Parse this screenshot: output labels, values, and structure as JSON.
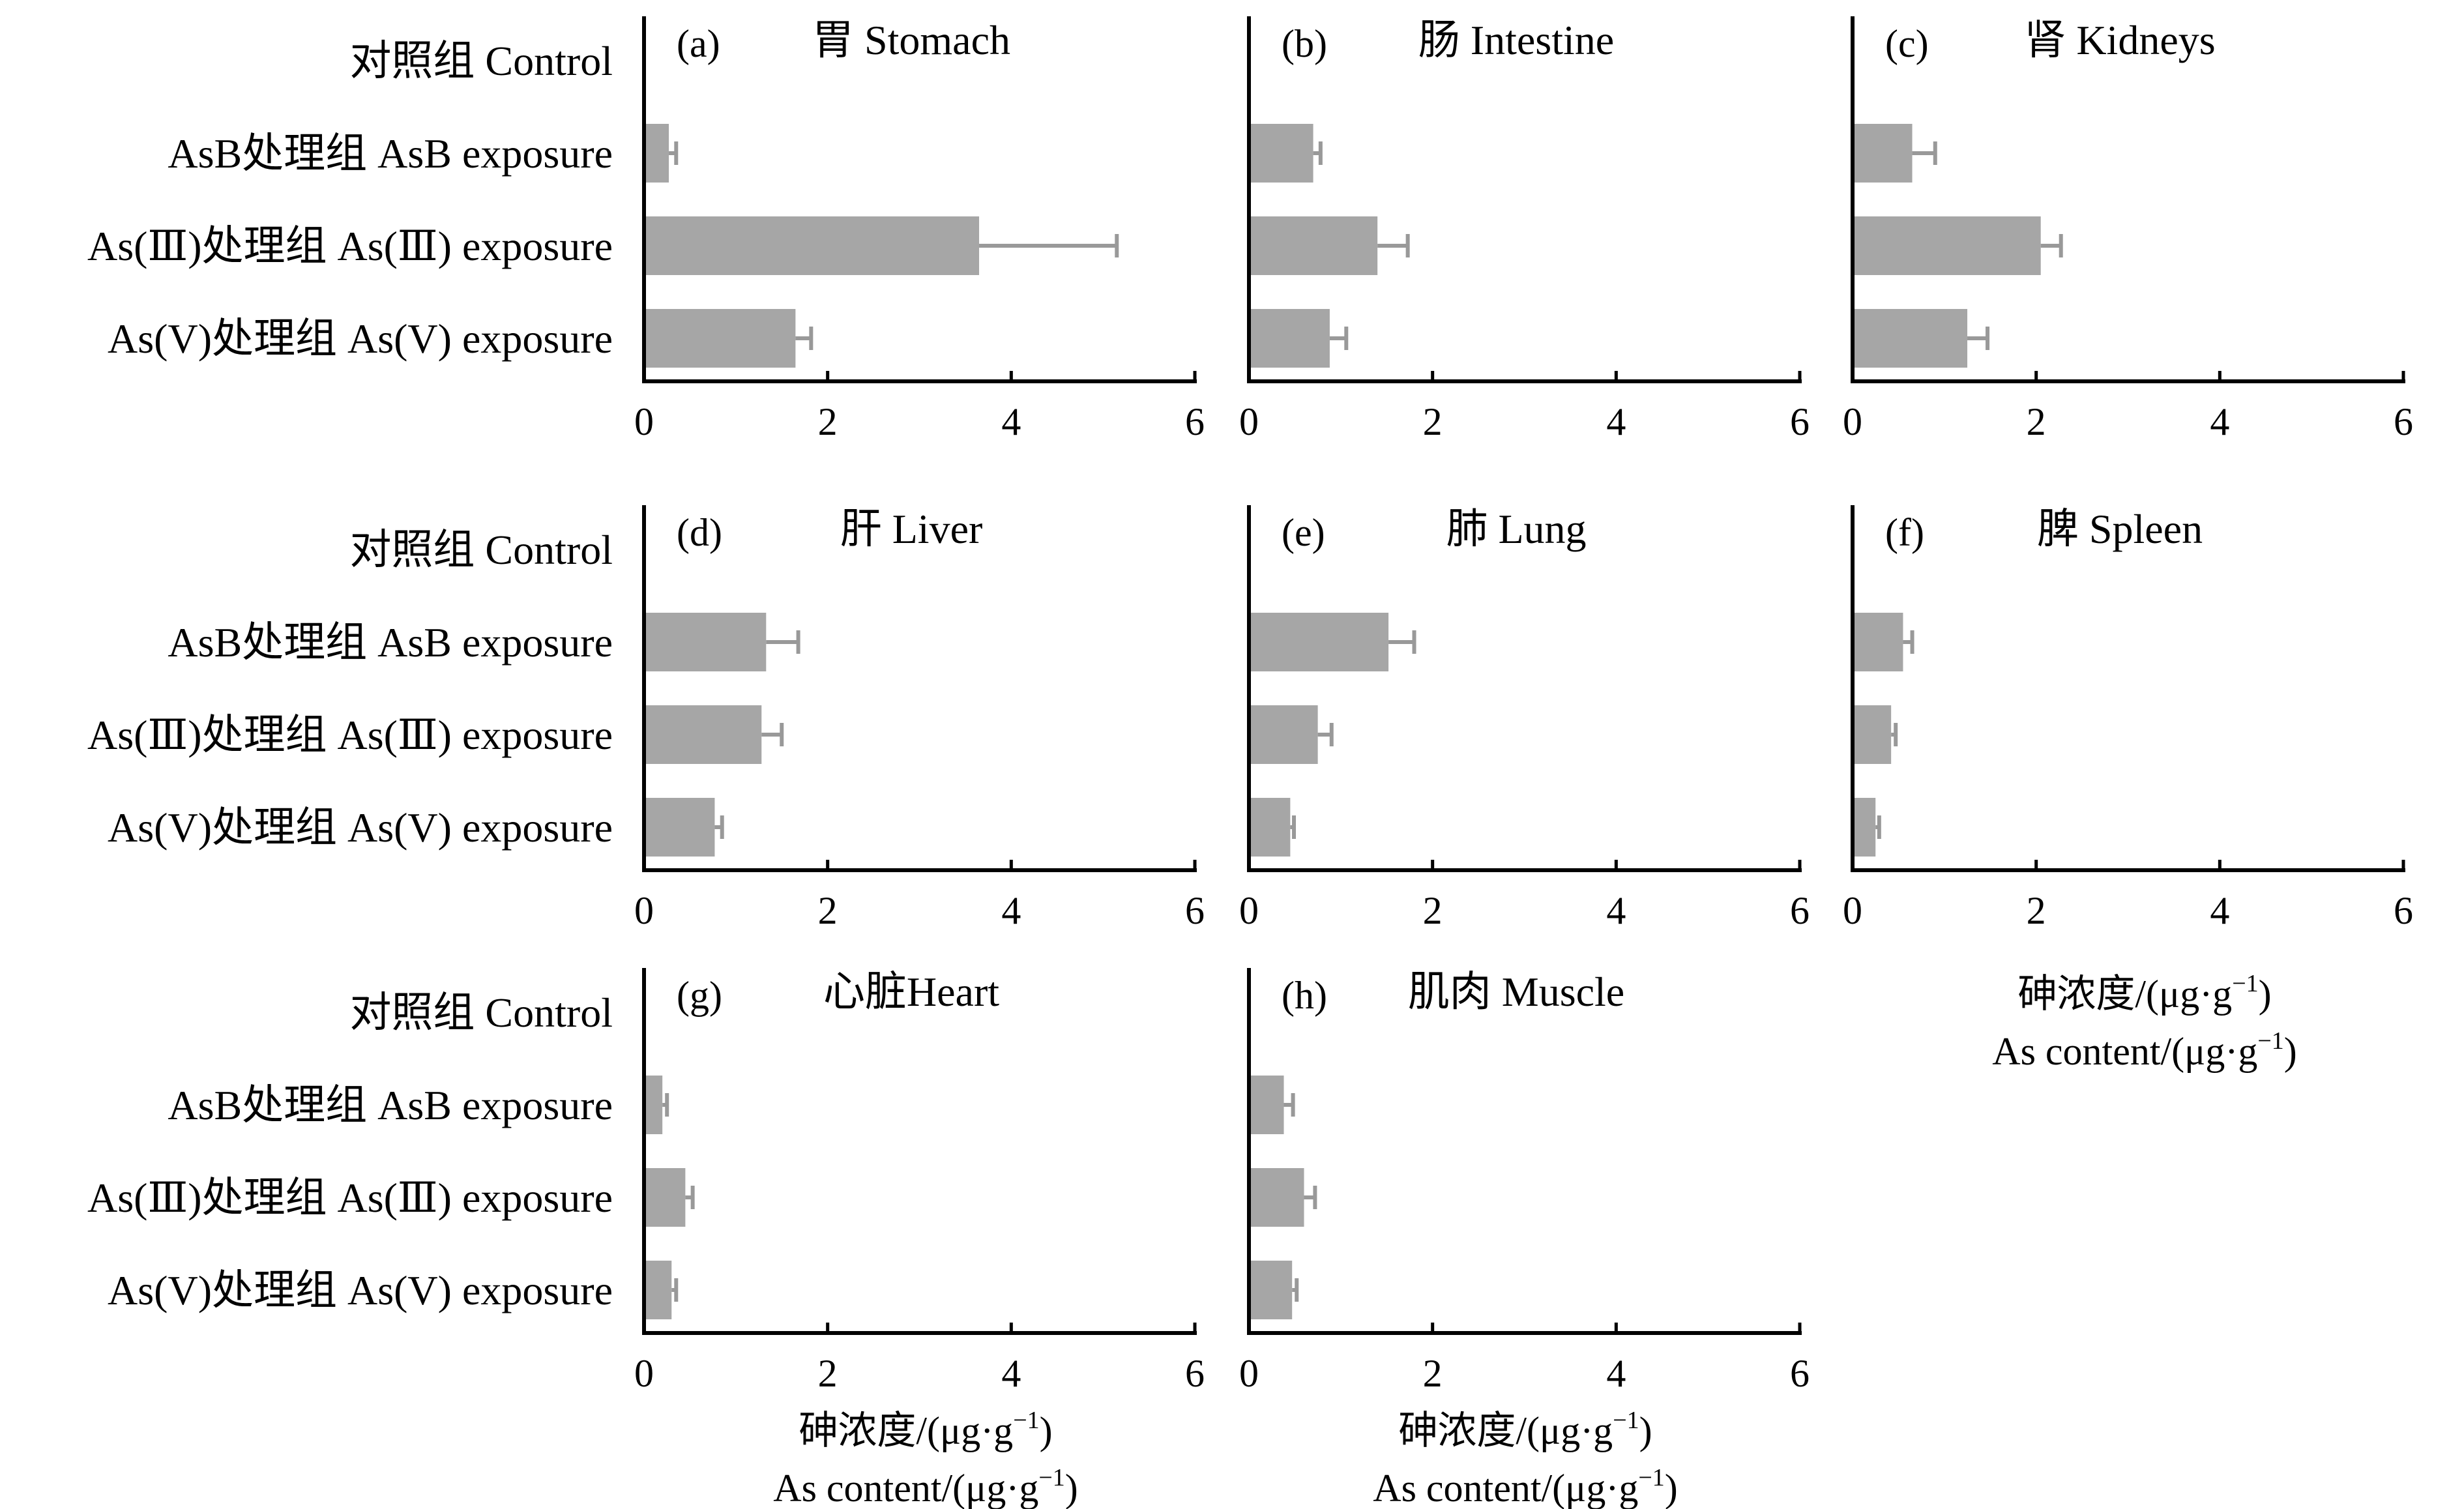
{
  "figure": {
    "category_labels": [
      "对照组 Control",
      "AsB处理组 AsB exposure",
      "As(Ⅲ)处理组 As(Ⅲ) exposure",
      "As(V)处理组 As(V) exposure"
    ],
    "xlabel_cn": "砷浓度/(μg·g",
    "xlabel_en": "As content/(μg·g",
    "xlabel_sup": "−1",
    "xlabel_close": ")",
    "bar_color": "#a6a6a6",
    "axis_color": "#000000"
  },
  "chart_data": [
    {
      "type": "bar",
      "panel": "(a)",
      "title": "胃 Stomach",
      "categories": [
        "对照组 Control",
        "AsB处理组 AsB exposure",
        "As(Ⅲ)处理组 As(Ⅲ) exposure",
        "As(V)处理组 As(V) exposure"
      ],
      "values": [
        0.02,
        0.27,
        3.65,
        1.65
      ],
      "errors": [
        0.0,
        0.08,
        1.5,
        0.17
      ],
      "xlim": [
        0,
        6
      ],
      "xticks": [
        0,
        2,
        4,
        6
      ]
    },
    {
      "type": "bar",
      "panel": "(b)",
      "title": "肠 Intestine",
      "categories": [
        "对照组 Control",
        "AsB处理组 AsB exposure",
        "As(Ⅲ)处理组 As(Ⅲ) exposure",
        "As(V)处理组 As(V) exposure"
      ],
      "values": [
        0.02,
        0.7,
        1.4,
        0.88
      ],
      "errors": [
        0.0,
        0.08,
        0.33,
        0.18
      ],
      "xlim": [
        0,
        6
      ],
      "xticks": [
        0,
        2,
        4,
        6
      ]
    },
    {
      "type": "bar",
      "panel": "(c)",
      "title": "肾 Kidneys",
      "categories": [
        "对照组 Control",
        "AsB处理组 AsB exposure",
        "As(Ⅲ)处理组 As(Ⅲ) exposure",
        "As(V)处理组 As(V) exposure"
      ],
      "values": [
        0.02,
        0.65,
        2.05,
        1.25
      ],
      "errors": [
        0.0,
        0.25,
        0.22,
        0.22
      ],
      "xlim": [
        0,
        6
      ],
      "xticks": [
        0,
        2,
        4,
        6
      ]
    },
    {
      "type": "bar",
      "panel": "(d)",
      "title": "肝 Liver",
      "categories": [
        "对照组 Control",
        "AsB处理组 AsB exposure",
        "As(Ⅲ)处理组 As(Ⅲ) exposure",
        "As(V)处理组 As(V) exposure"
      ],
      "values": [
        0.02,
        1.33,
        1.28,
        0.77
      ],
      "errors": [
        0.0,
        0.35,
        0.22,
        0.08
      ],
      "xlim": [
        0,
        6
      ],
      "xticks": [
        0,
        2,
        4,
        6
      ]
    },
    {
      "type": "bar",
      "panel": "(e)",
      "title": "肺 Lung",
      "categories": [
        "对照组 Control",
        "AsB处理组 AsB exposure",
        "As(Ⅲ)处理组 As(Ⅲ) exposure",
        "As(V)处理组 As(V) exposure"
      ],
      "values": [
        0.02,
        1.52,
        0.75,
        0.45
      ],
      "errors": [
        0.0,
        0.28,
        0.15,
        0.04
      ],
      "xlim": [
        0,
        6
      ],
      "xticks": [
        0,
        2,
        4,
        6
      ]
    },
    {
      "type": "bar",
      "panel": "(f)",
      "title": "脾 Spleen",
      "categories": [
        "对照组 Control",
        "AsB处理组 AsB exposure",
        "As(Ⅲ)处理组 As(Ⅲ) exposure",
        "As(V)处理组 As(V) exposure"
      ],
      "values": [
        0.02,
        0.55,
        0.42,
        0.25
      ],
      "errors": [
        0.0,
        0.1,
        0.05,
        0.04
      ],
      "xlim": [
        0,
        6
      ],
      "xticks": [
        0,
        2,
        4,
        6
      ]
    },
    {
      "type": "bar",
      "panel": "(g)",
      "title": "心脏Heart",
      "categories": [
        "对照组 Control",
        "AsB处理组 AsB exposure",
        "As(Ⅲ)处理组 As(Ⅲ) exposure",
        "As(V)处理组 As(V) exposure"
      ],
      "values": [
        0.02,
        0.2,
        0.45,
        0.3
      ],
      "errors": [
        0.0,
        0.05,
        0.08,
        0.05
      ],
      "xlim": [
        0,
        6
      ],
      "xticks": [
        0,
        2,
        4,
        6
      ]
    },
    {
      "type": "bar",
      "panel": "(h)",
      "title": "肌肉 Muscle",
      "categories": [
        "对照组 Control",
        "AsB处理组 AsB exposure",
        "As(Ⅲ)处理组 As(Ⅲ) exposure",
        "As(V)处理组 As(V) exposure"
      ],
      "values": [
        0.02,
        0.38,
        0.6,
        0.47
      ],
      "errors": [
        0.0,
        0.1,
        0.12,
        0.05
      ],
      "xlim": [
        0,
        6
      ],
      "xticks": [
        0,
        2,
        4,
        6
      ]
    }
  ]
}
